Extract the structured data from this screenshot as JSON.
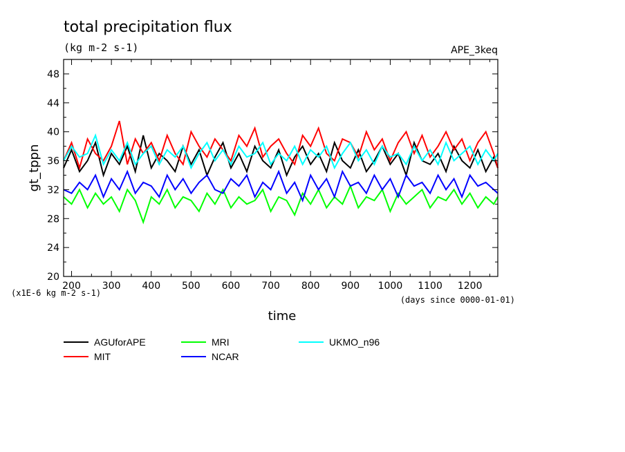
{
  "chart_data": {
    "type": "line",
    "title": "total precipitation flux",
    "subtitle": "(kg m-2 s-1)",
    "tag": "APE_3keq",
    "ylabel": "gt_tppn",
    "xlabel": "time",
    "y_scale_note": "(x1E-6 kg m-2 s-1)",
    "x_unit_note": "(days since 0000-01-01)",
    "xlim": [
      180,
      1270
    ],
    "ylim": [
      20,
      50
    ],
    "x_ticks": [
      200,
      300,
      400,
      500,
      600,
      700,
      800,
      900,
      1000,
      1100,
      1200
    ],
    "y_ticks": [
      20,
      24,
      28,
      32,
      36,
      40,
      44,
      48
    ],
    "x": [
      180,
      200,
      220,
      240,
      260,
      280,
      300,
      320,
      340,
      360,
      380,
      400,
      420,
      440,
      460,
      480,
      500,
      520,
      540,
      560,
      580,
      600,
      620,
      640,
      660,
      680,
      700,
      720,
      740,
      760,
      780,
      800,
      820,
      840,
      860,
      880,
      900,
      920,
      940,
      960,
      980,
      1000,
      1020,
      1040,
      1060,
      1080,
      1100,
      1120,
      1140,
      1160,
      1180,
      1200,
      1220,
      1240,
      1260,
      1270
    ],
    "series": [
      {
        "name": "AGUforAPE",
        "color": "#000000",
        "values": [
          35,
          37.5,
          34.5,
          36,
          38.5,
          34,
          37,
          35.5,
          38,
          34.5,
          39.5,
          35,
          37,
          36,
          34.5,
          38,
          35.5,
          37.5,
          34,
          36.5,
          38.5,
          35,
          37,
          34.5,
          38,
          36,
          35,
          37.5,
          34,
          36.5,
          38,
          35.5,
          37,
          34.5,
          38.5,
          36,
          35,
          37.5,
          34.5,
          36,
          38,
          35.5,
          37,
          34,
          38.5,
          36,
          35.5,
          37,
          34.5,
          38,
          36,
          35,
          37.5,
          34.5,
          36.5,
          35
        ]
      },
      {
        "name": "MIT",
        "color": "#ff0000",
        "values": [
          36,
          38.5,
          35,
          39,
          37,
          36,
          38,
          41.5,
          35.5,
          39,
          37,
          38.5,
          36,
          39.5,
          37,
          35.5,
          40,
          38,
          36.5,
          39,
          37.5,
          36,
          39.5,
          38,
          40.5,
          36.5,
          38,
          39,
          37,
          35.5,
          39.5,
          38,
          40.5,
          37,
          36,
          39,
          38.5,
          36.5,
          40,
          37.5,
          39,
          36,
          38.5,
          40,
          37,
          39.5,
          36.5,
          38,
          40,
          37.5,
          39,
          36,
          38.5,
          40,
          37,
          35
        ]
      },
      {
        "name": "MRI",
        "color": "#00ff00",
        "values": [
          31,
          30,
          32,
          29.5,
          31.5,
          30,
          31,
          29,
          32,
          30.5,
          27.5,
          31,
          30,
          32,
          29.5,
          31,
          30.5,
          29,
          31.5,
          30,
          32,
          29.5,
          31,
          30,
          30.5,
          32,
          29,
          31,
          30.5,
          28.5,
          31.5,
          30,
          32,
          29.5,
          31,
          30,
          32.5,
          29.5,
          31,
          30.5,
          32,
          29,
          31.5,
          30,
          31,
          32,
          29.5,
          31,
          30.5,
          32,
          30,
          31.5,
          29.5,
          31,
          30,
          31
        ]
      },
      {
        "name": "NCAR",
        "color": "#0000ff",
        "values": [
          32,
          31.5,
          33,
          32,
          34,
          31,
          33.5,
          32,
          34.5,
          31.5,
          33,
          32.5,
          31,
          34,
          32,
          33.5,
          31.5,
          33,
          34,
          32,
          31.5,
          33.5,
          32.5,
          34,
          31,
          33,
          32,
          34.5,
          31.5,
          33,
          30.5,
          34,
          32,
          33.5,
          31,
          34.5,
          32.5,
          33,
          31.5,
          34,
          32,
          33.5,
          31,
          34,
          32.5,
          33,
          31.5,
          34,
          32,
          33.5,
          31,
          34,
          32.5,
          33,
          32,
          31.5
        ]
      },
      {
        "name": "UKMO_n96",
        "color": "#00ffff",
        "values": [
          36,
          38,
          36.5,
          37,
          39.5,
          35.5,
          37.5,
          36,
          38.5,
          35.5,
          37,
          38,
          35.5,
          37.5,
          36.5,
          38,
          35,
          37,
          38.5,
          36,
          37.5,
          35.5,
          38,
          36.5,
          37,
          38.5,
          35.5,
          37,
          36,
          38,
          35.5,
          37.5,
          36.5,
          38,
          35,
          37,
          38.5,
          36,
          37.5,
          35.5,
          38,
          36.5,
          37,
          35.5,
          38,
          36,
          37.5,
          35.5,
          38.5,
          36,
          37,
          38,
          35.5,
          37.5,
          36,
          37
        ]
      }
    ],
    "legend_position": "bottom"
  }
}
